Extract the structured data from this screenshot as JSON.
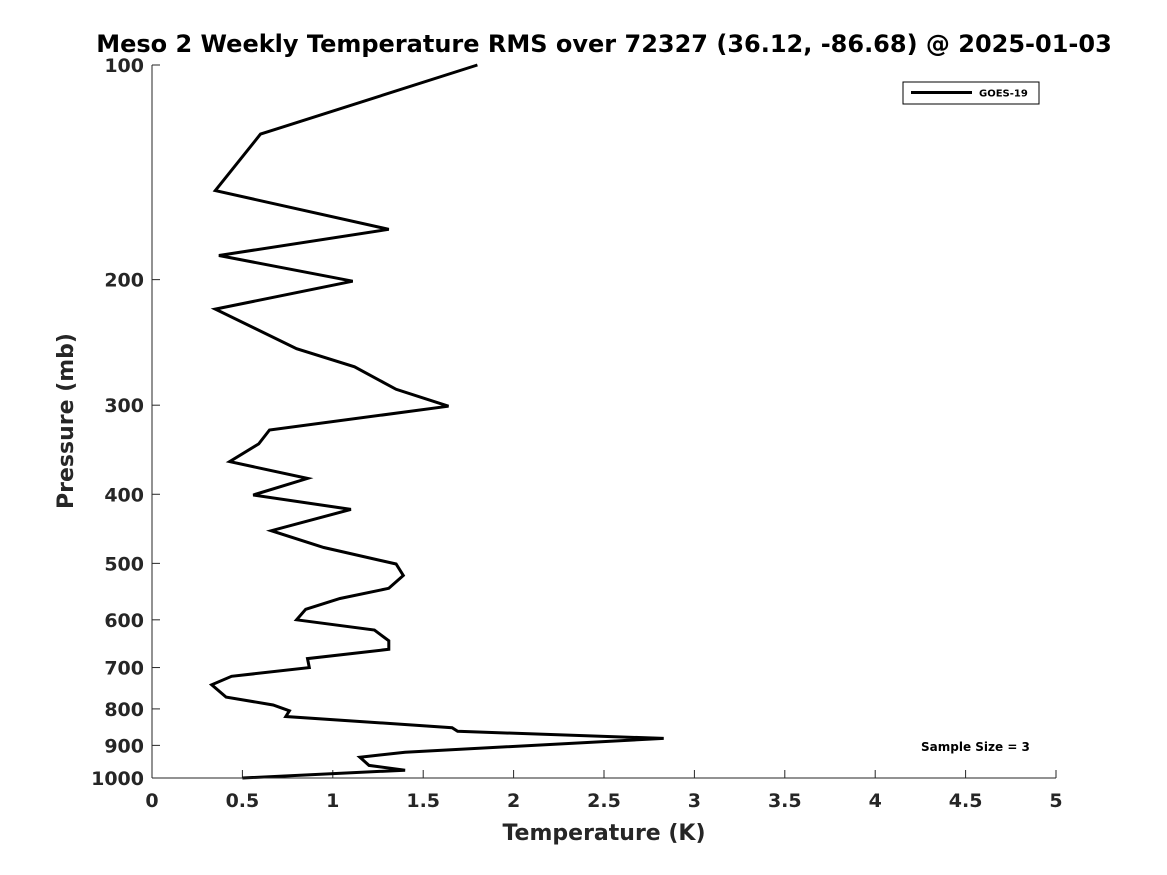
{
  "chart_data": {
    "type": "line",
    "title": "Meso 2 Weekly Temperature RMS over 72327 (36.12, -86.68) @ 2025-01-03",
    "xlabel": "Temperature (K)",
    "ylabel": "Pressure (mb)",
    "xlim": [
      0,
      5
    ],
    "ylim": [
      100,
      1000
    ],
    "yscale": "log",
    "y_reversed": true,
    "x_ticks": [
      "0",
      "0.5",
      "1",
      "1.5",
      "2",
      "2.5",
      "3",
      "3.5",
      "4",
      "4.5",
      "5"
    ],
    "y_ticks": [
      "100",
      "200",
      "300",
      "400",
      "500",
      "600",
      "700",
      "800",
      "900",
      "1000"
    ],
    "grid": false,
    "legend_position": "top-right",
    "annotation": "Sample Size = 3",
    "series": [
      {
        "name": "GOES-19",
        "color": "#000000",
        "x": [
          1.8,
          0.6,
          0.35,
          1.31,
          0.37,
          1.11,
          0.35,
          0.8,
          1.12,
          1.35,
          1.64,
          0.65,
          0.59,
          0.43,
          0.86,
          0.56,
          1.1,
          0.66,
          0.95,
          1.35,
          1.39,
          1.31,
          1.04,
          0.85,
          0.8,
          1.23,
          1.31,
          1.31,
          0.86,
          0.87,
          0.44,
          0.33,
          0.41,
          0.67,
          0.76,
          0.74,
          1.66,
          1.69,
          2.83,
          1.4,
          1.15,
          1.2,
          1.4,
          0.5
        ],
        "y": [
          100,
          125,
          150,
          170,
          185,
          201,
          220,
          250,
          265,
          285,
          301,
          325,
          340,
          360,
          380,
          401,
          420,
          450,
          475,
          501,
          520,
          542,
          560,
          580,
          600,
          620,
          642,
          660,
          680,
          700,
          720,
          740,
          770,
          790,
          805,
          820,
          850,
          860,
          880,
          920,
          935,
          960,
          975,
          1000
        ]
      }
    ]
  }
}
